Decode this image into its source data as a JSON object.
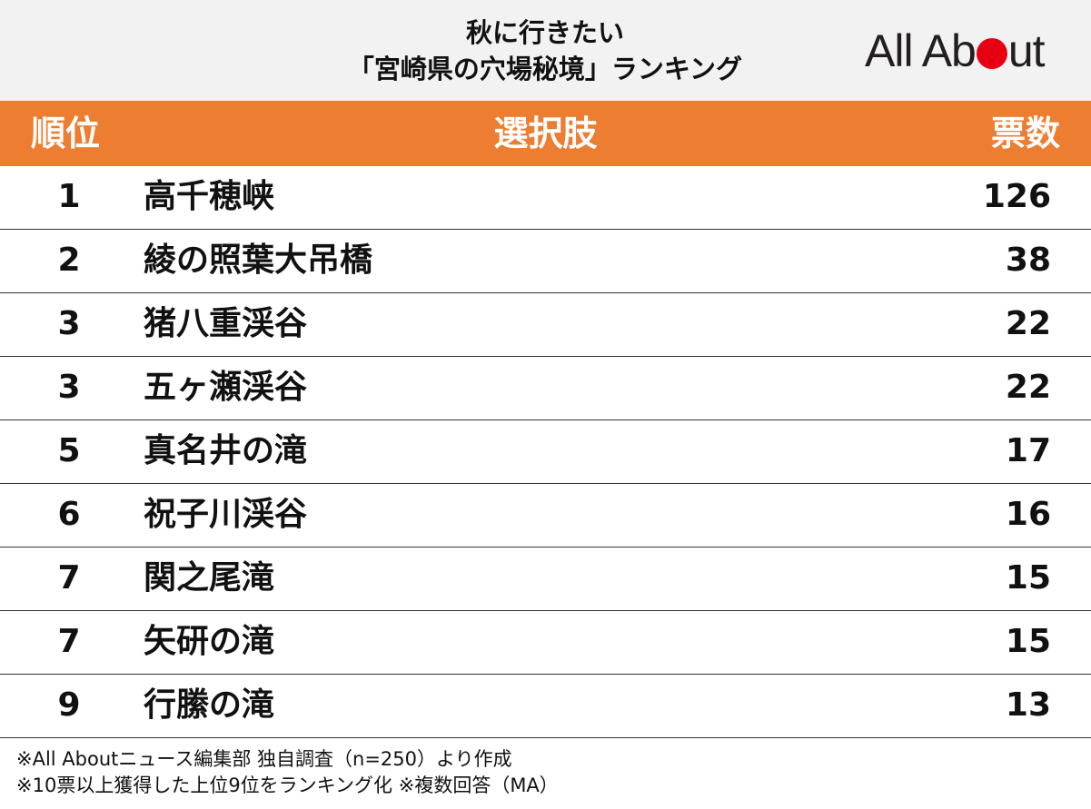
{
  "header": {
    "title_line1": "秋に行きたい",
    "title_line2": "「宮崎県の穴場秘境」ランキング",
    "logo_text_prefix": "All Ab",
    "logo_text_suffix": "ut"
  },
  "colors": {
    "header_bar": "#ed7d31",
    "logo_dot": "#e60012",
    "title_band": "#f2f2f2"
  },
  "chart_data": {
    "type": "table",
    "columns": [
      "順位",
      "選択肢",
      "票数"
    ],
    "rows": [
      {
        "rank": "1",
        "name": "高千穂峡",
        "votes": "126"
      },
      {
        "rank": "2",
        "name": "綾の照葉大吊橋",
        "votes": "38"
      },
      {
        "rank": "3",
        "name": "猪八重渓谷",
        "votes": "22"
      },
      {
        "rank": "3",
        "name": "五ヶ瀬渓谷",
        "votes": "22"
      },
      {
        "rank": "5",
        "name": "真名井の滝",
        "votes": "17"
      },
      {
        "rank": "6",
        "name": "祝子川渓谷",
        "votes": "16"
      },
      {
        "rank": "7",
        "name": "関之尾滝",
        "votes": "15"
      },
      {
        "rank": "7",
        "name": "矢研の滝",
        "votes": "15"
      },
      {
        "rank": "9",
        "name": "行縢の滝",
        "votes": "13"
      }
    ]
  },
  "footer": {
    "note1": "※All Aboutニュース編集部 独自調査（n=250）より作成",
    "note2": "※10票以上獲得した上位9位をランキング化 ※複数回答（MA）"
  }
}
